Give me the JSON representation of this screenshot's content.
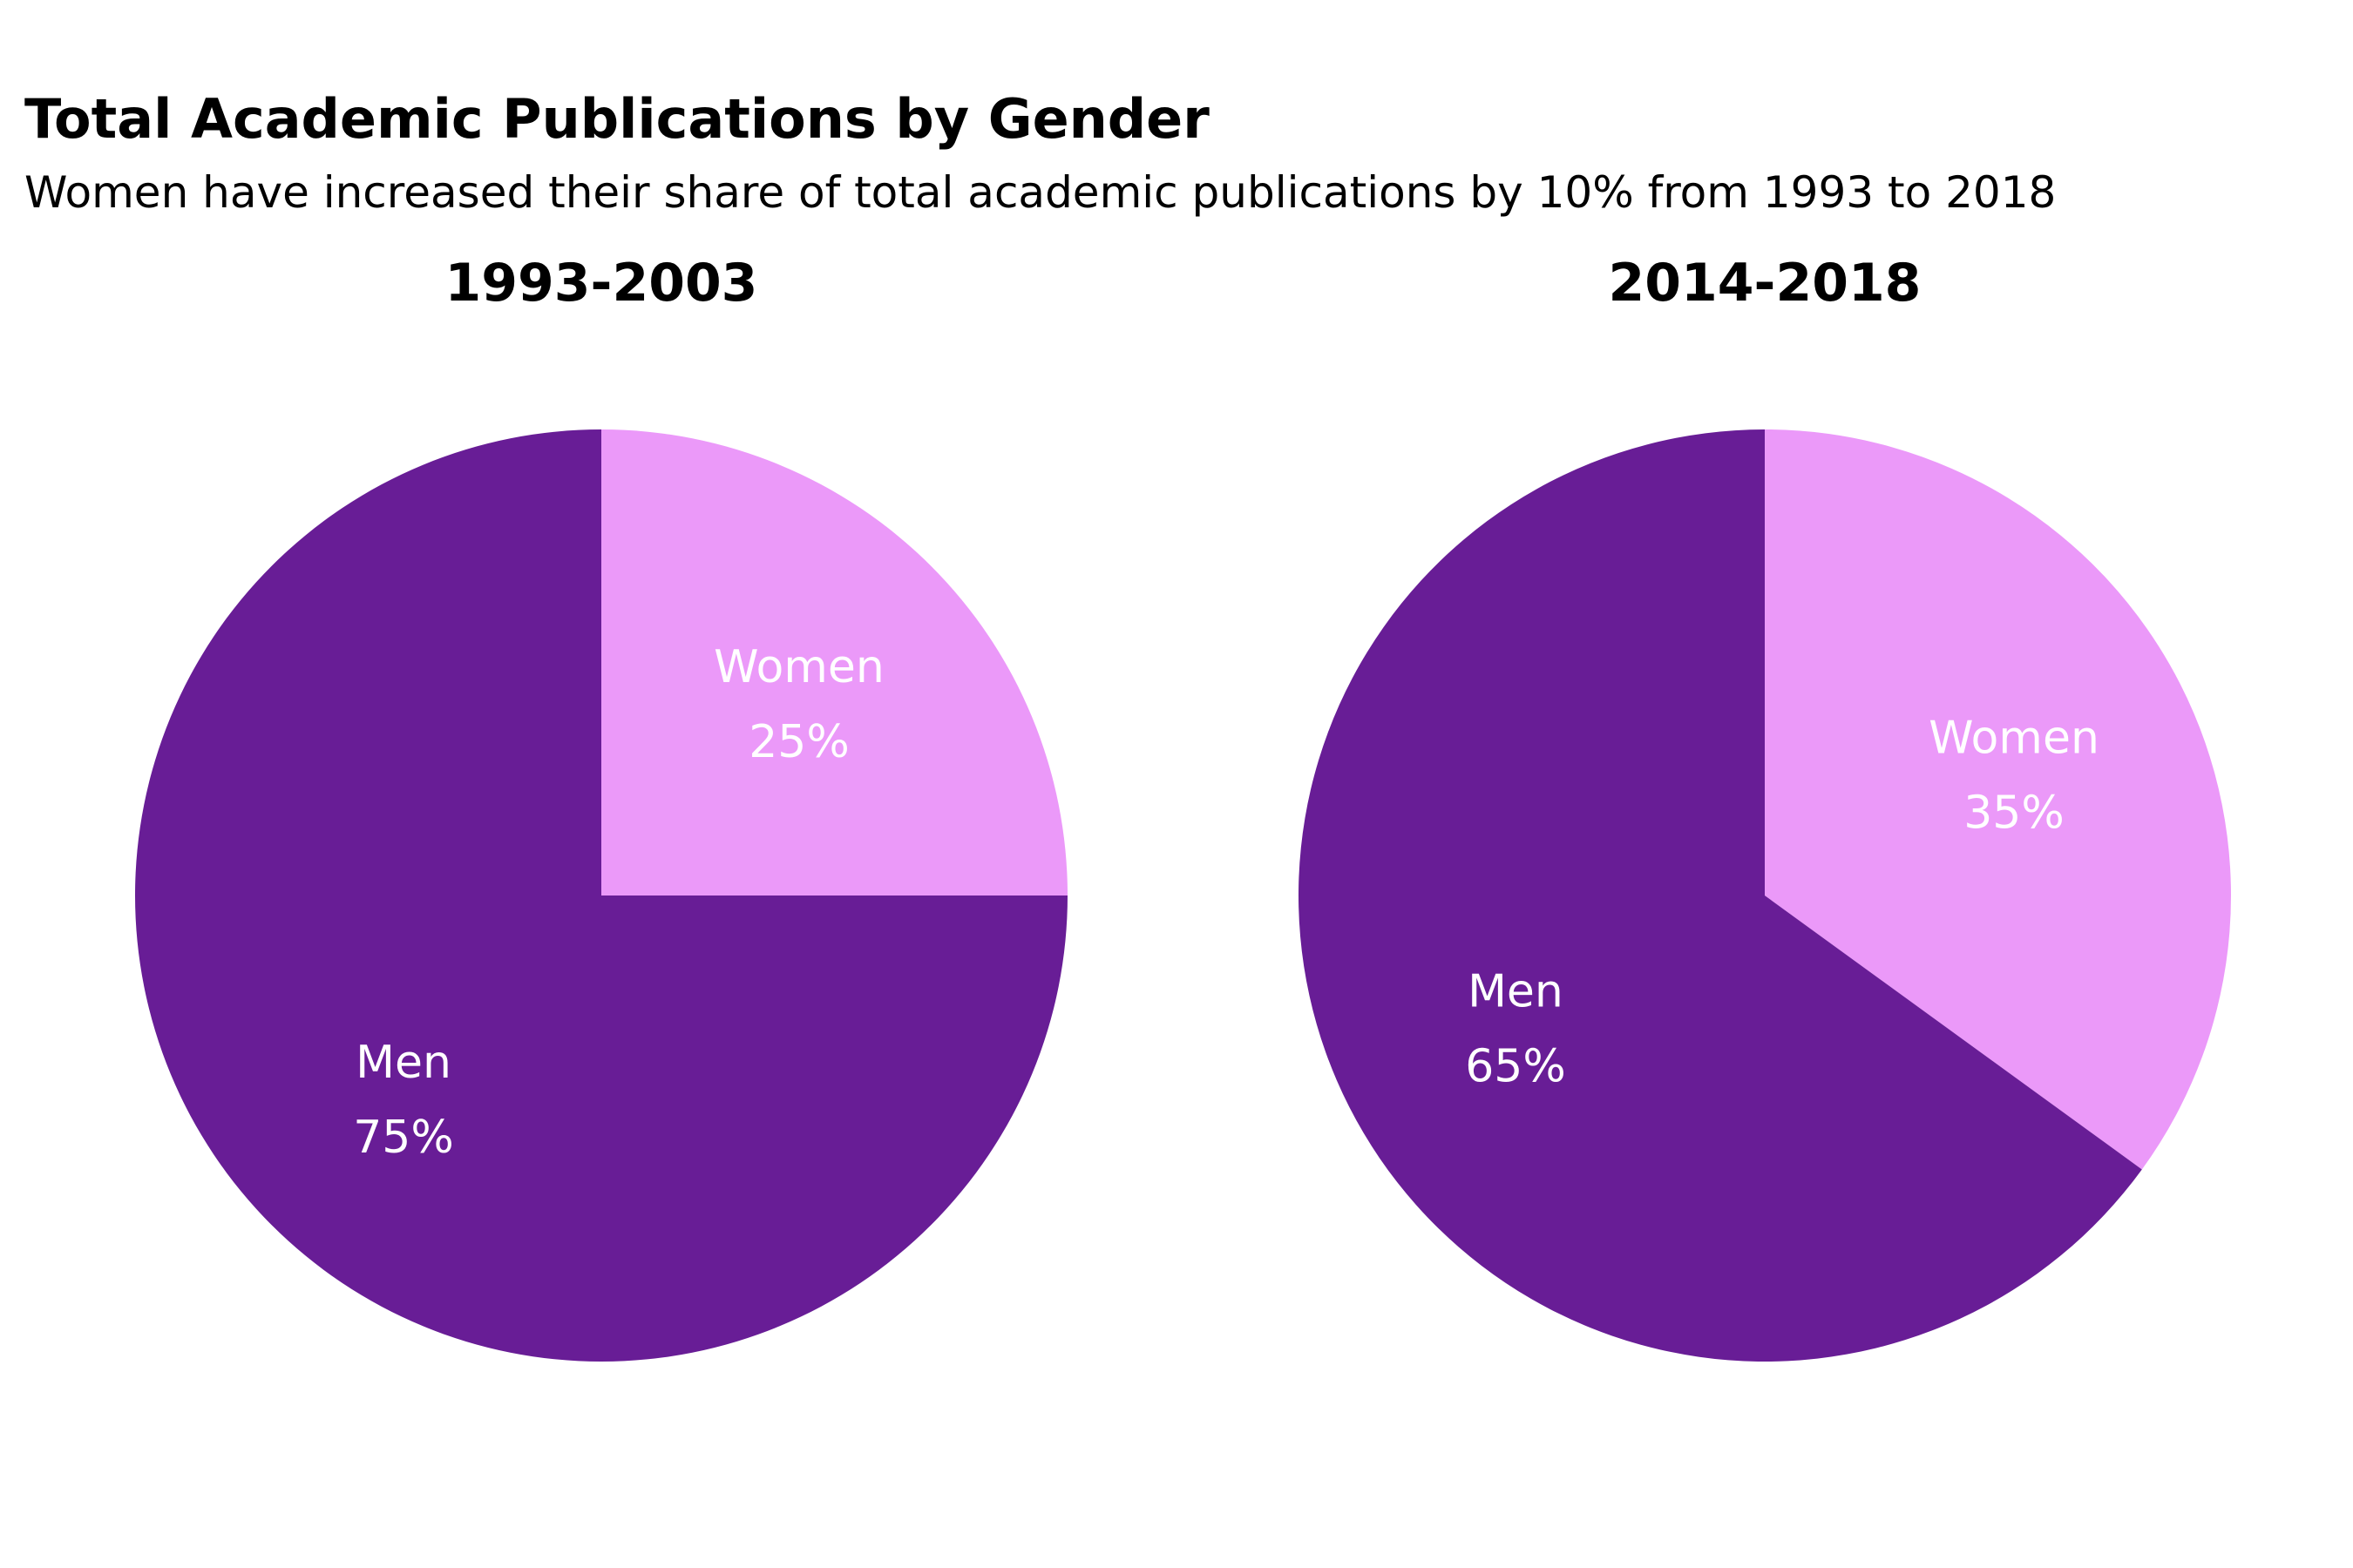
{
  "title": "Total Academic Publications by Gender",
  "subtitle": "Women have increased their share of total academic publications by 10% from 1993 to 2018",
  "colors": {
    "men": "#681d96",
    "women": "#eb99f9",
    "label_text": "#ffffff",
    "title_text": "#000000"
  },
  "chart_data": [
    {
      "type": "pie",
      "title": "1993-2003",
      "slices": [
        {
          "label": "Women",
          "value": 25,
          "value_label": "25%",
          "color": "#eb99f9"
        },
        {
          "label": "Men",
          "value": 75,
          "value_label": "75%",
          "color": "#681d96"
        }
      ]
    },
    {
      "type": "pie",
      "title": "2014-2018",
      "slices": [
        {
          "label": "Women",
          "value": 35,
          "value_label": "35%",
          "color": "#eb99f9"
        },
        {
          "label": "Men",
          "value": 65,
          "value_label": "65%",
          "color": "#681d96"
        }
      ]
    }
  ]
}
